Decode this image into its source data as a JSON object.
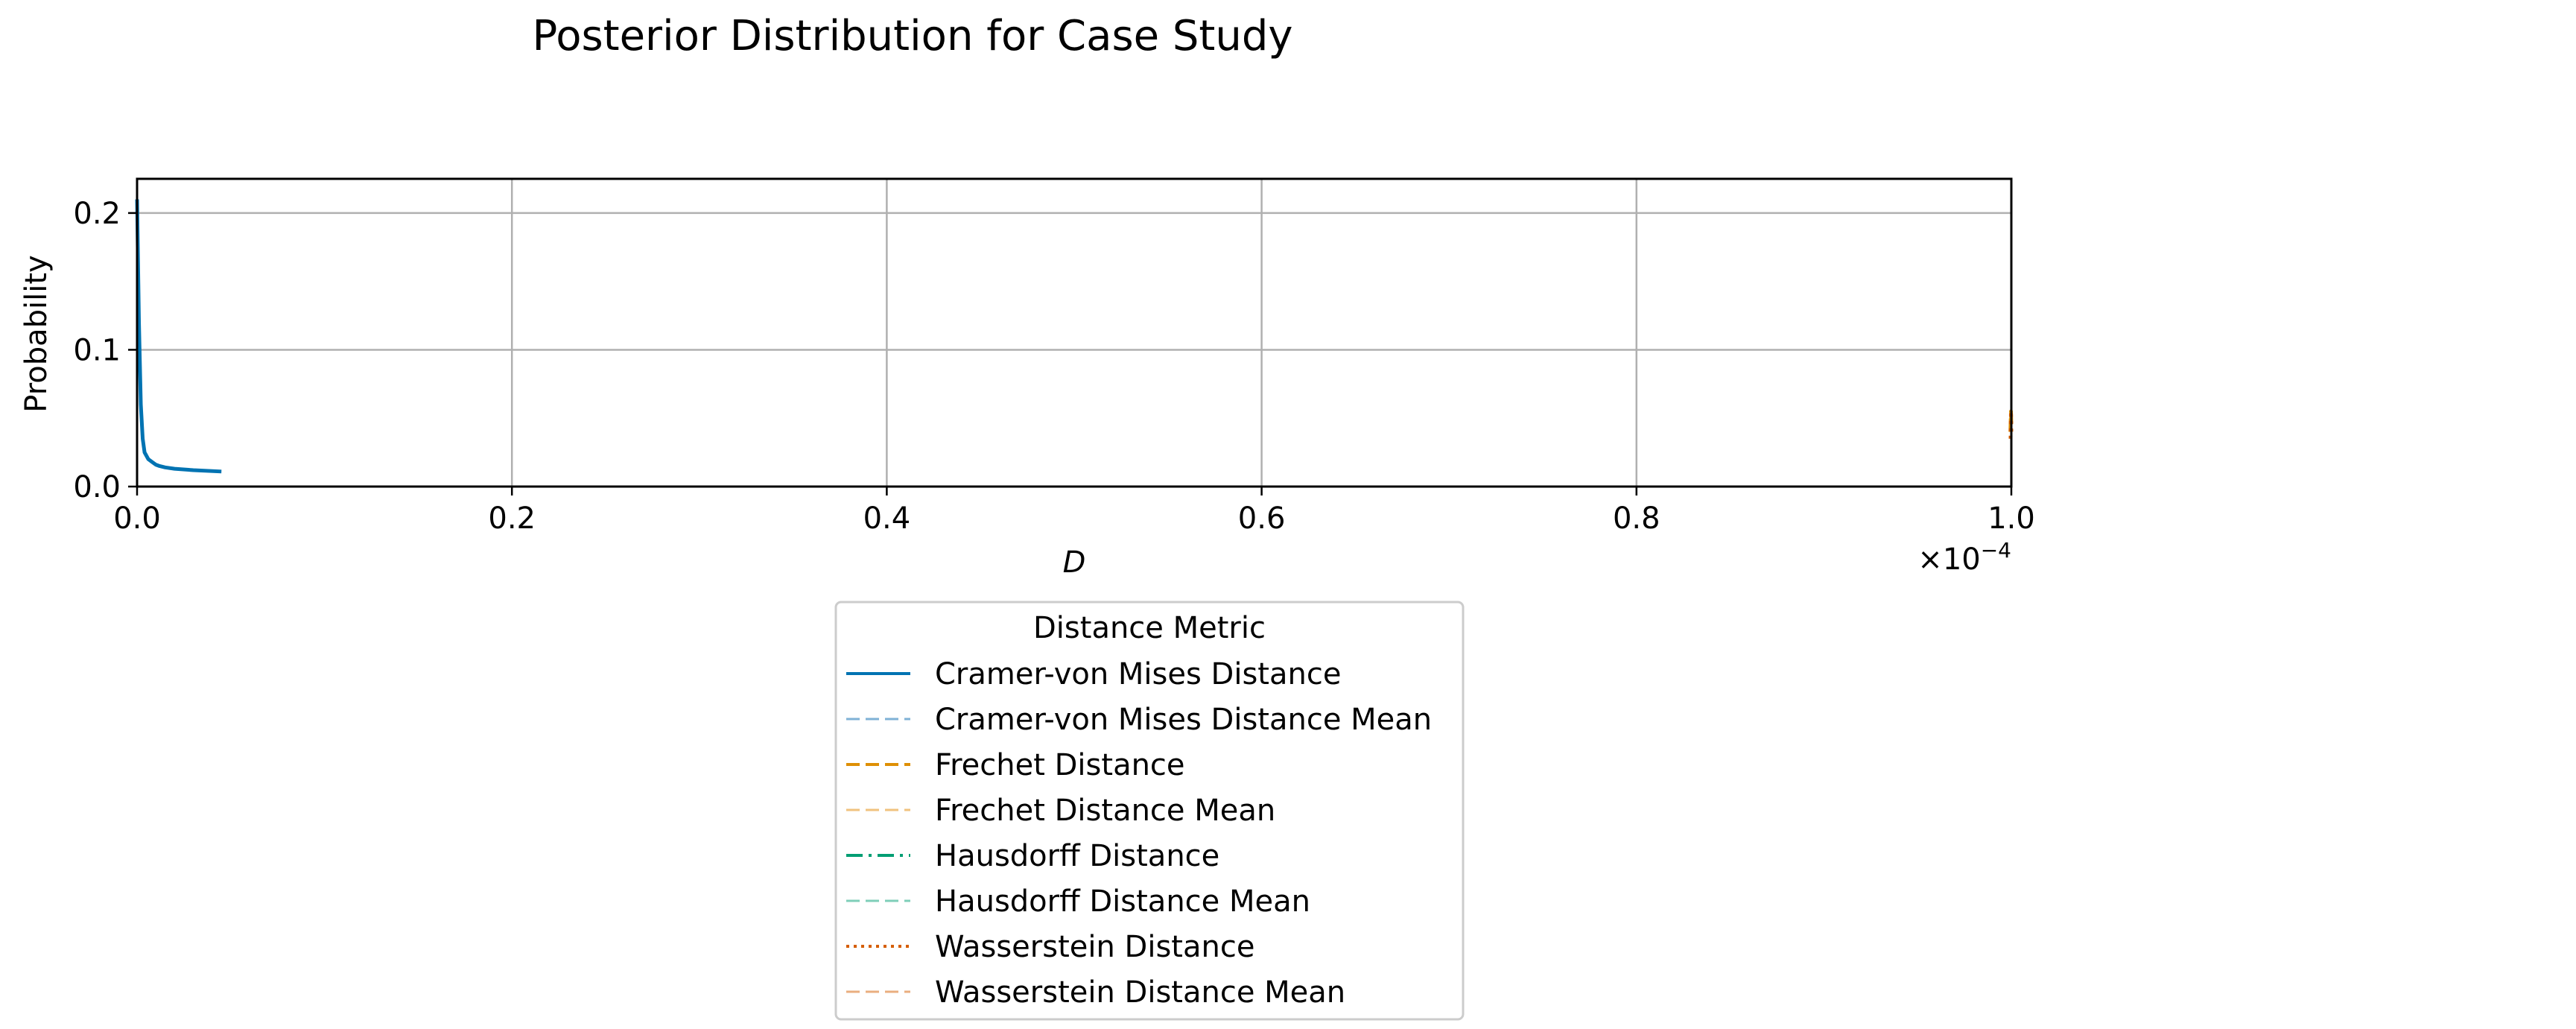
{
  "chart_data": {
    "type": "line",
    "title": "Posterior Distribution for Case Study",
    "xlabel": "D",
    "ylabel": "Probability",
    "x_scale_label": "×10",
    "x_scale_exponent": "−4",
    "xlim": [
      0.0,
      1.0
    ],
    "ylim": [
      0.0,
      0.225
    ],
    "x_ticks": [
      0.0,
      0.2,
      0.4,
      0.6,
      0.8,
      1.0
    ],
    "x_tick_labels": [
      "0.0",
      "0.2",
      "0.4",
      "0.6",
      "0.8",
      "1.0"
    ],
    "y_ticks": [
      0.0,
      0.1,
      0.2
    ],
    "y_tick_labels": [
      "0.0",
      "0.1",
      "0.2"
    ],
    "grid": true,
    "legend_title": "Distance Metric",
    "legend_position": "below plot, centered",
    "series": [
      {
        "name": "Cramer-von Mises Distance",
        "color": "#0173b2",
        "dash": "solid",
        "width": 5,
        "x": [
          0.0,
          0.001,
          0.002,
          0.003,
          0.004,
          0.006,
          0.008,
          0.01,
          0.012,
          0.015,
          0.02,
          0.03,
          0.045
        ],
        "y": [
          0.21,
          0.12,
          0.06,
          0.035,
          0.025,
          0.02,
          0.018,
          0.016,
          0.015,
          0.014,
          0.013,
          0.012,
          0.011
        ]
      },
      {
        "name": "Cramer-von Mises Distance Mean",
        "color": "#7fb2d6",
        "dash": "dashed",
        "width": 3,
        "x": [
          0.0,
          0.0
        ],
        "y": [
          0.0,
          0.225
        ]
      },
      {
        "name": "Frechet Distance",
        "color": "#de8f05",
        "dash": "dashed",
        "width": 5,
        "x": [
          0.9995,
          0.9996,
          0.9997,
          0.9998,
          0.9999,
          1.0
        ],
        "y": [
          0.04,
          0.045,
          0.05,
          0.055,
          0.05,
          0.045
        ]
      },
      {
        "name": "Frechet Distance Mean",
        "color": "#f0c27e",
        "dash": "dashed",
        "width": 3,
        "x": [
          1.0,
          1.0
        ],
        "y": [
          0.0,
          0.225
        ]
      },
      {
        "name": "Hausdorff Distance",
        "color": "#029e73",
        "dash": "dashdot",
        "width": 5,
        "x": [],
        "y": []
      },
      {
        "name": "Hausdorff Distance Mean",
        "color": "#7fcfb9",
        "dash": "dashed",
        "width": 3,
        "x": [],
        "y": []
      },
      {
        "name": "Wasserstein Distance",
        "color": "#d55e00",
        "dash": "dotted",
        "width": 5,
        "x": [
          0.9996,
          0.9997,
          0.9998,
          0.9999,
          1.0
        ],
        "y": [
          0.035,
          0.045,
          0.055,
          0.05,
          0.04
        ]
      },
      {
        "name": "Wasserstein Distance Mean",
        "color": "#eaae7f",
        "dash": "dashed",
        "width": 3,
        "x": [
          1.0,
          1.0
        ],
        "y": [
          0.0,
          0.225
        ]
      }
    ]
  }
}
